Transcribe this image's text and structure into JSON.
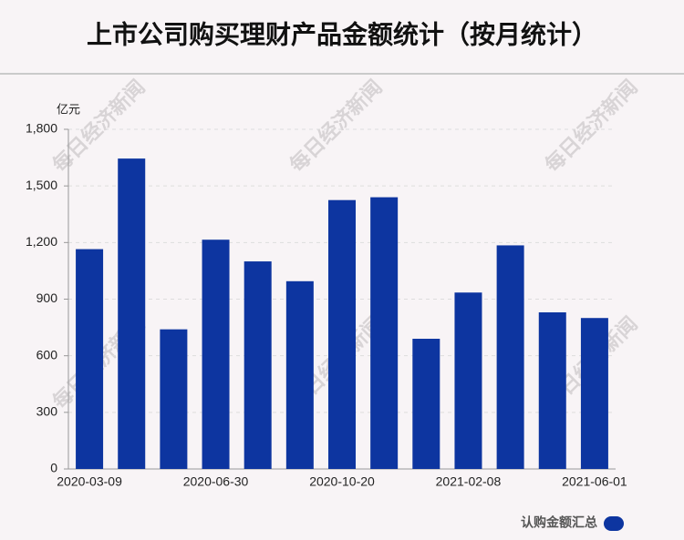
{
  "chart_data": {
    "type": "bar",
    "title": "上市公司购买理财产品金额统计（按月统计）",
    "y_unit": "亿元",
    "watermark": "每日经济新闻",
    "categories": [
      "2020-03-09",
      null,
      null,
      "2020-06-30",
      null,
      null,
      "2020-10-20",
      null,
      null,
      "2021-02-08",
      null,
      null,
      "2021-06-01"
    ],
    "series": [
      {
        "name": "认购金额汇总",
        "color": "#0d35a0",
        "values": [
          1165,
          1645,
          740,
          1215,
          1100,
          995,
          1425,
          1440,
          690,
          935,
          1185,
          830,
          800
        ]
      }
    ],
    "ylim": [
      0,
      1800
    ],
    "yticks": [
      0,
      300,
      600,
      900,
      {
        "value": 1200,
        "label": "1,200"
      },
      {
        "value": 1500,
        "label": "1,500"
      },
      {
        "value": 1800,
        "label": "1,800"
      }
    ],
    "grid": true,
    "legend": "bottom-right"
  }
}
